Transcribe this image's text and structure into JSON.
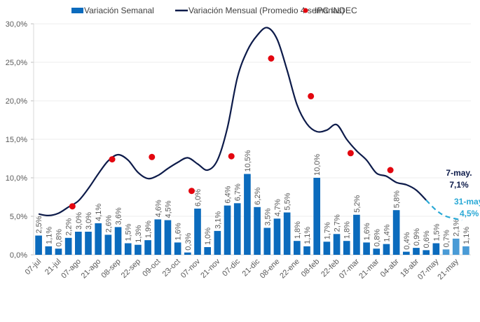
{
  "chart_data": {
    "type": "bar",
    "title": "",
    "xlabel": "",
    "ylabel": "",
    "ylim": [
      0,
      30
    ],
    "y_ticks": [
      "0,0%",
      "5,0%",
      "10,0%",
      "15,0%",
      "20,0%",
      "25,0%",
      "30,0%"
    ],
    "y_tick_values": [
      0,
      5,
      10,
      15,
      20,
      25,
      30
    ],
    "grid": true,
    "legend_position": "top-center",
    "legend": [
      {
        "name": "Variación Semanal",
        "kind": "bar",
        "color": "#0b6bbd"
      },
      {
        "name": "Variación Mensual (Promedio 4 semanas)",
        "kind": "line",
        "color": "#0d1b4a"
      },
      {
        "name": "IPC INDEC",
        "kind": "dot",
        "color": "#e3060f"
      }
    ],
    "x_tick_labels": [
      "07-jul",
      "21-jul",
      "07-ago",
      "21-ago",
      "08-sep",
      "22-sep",
      "09-oct",
      "23-oct",
      "07-nov",
      "21-nov",
      "07-dic",
      "21-dic",
      "08-ene",
      "22-ene",
      "08-feb",
      "22-feb",
      "07-mar",
      "21-mar",
      "04-abr",
      "18-abr",
      "07-may",
      "21-may"
    ],
    "series": [
      {
        "name": "Variación Semanal",
        "type": "bar",
        "color": "#0b6bbd",
        "projected_color": "#4a9bd6",
        "values": [
          2.5,
          1.1,
          0.8,
          2.2,
          3.0,
          3.0,
          4.1,
          2.6,
          3.6,
          1.5,
          1.3,
          1.9,
          4.6,
          4.5,
          1.6,
          0.3,
          6.0,
          1.0,
          3.1,
          6.4,
          6.7,
          10.5,
          6.2,
          3.5,
          4.7,
          5.5,
          1.8,
          1.1,
          10.0,
          1.7,
          2.7,
          1.8,
          5.2,
          1.6,
          0.8,
          1.4,
          5.8,
          0.4,
          0.9,
          0.6,
          1.5,
          0.7,
          2.1,
          1.1
        ],
        "labels": [
          "2,5%",
          "1,1%",
          "0,8%",
          "2,2%",
          "3,0%",
          "3,0%",
          "4,1%",
          "2,6%",
          "3,6%",
          "1,5%",
          "1,3%",
          "1,9%",
          "4,6%",
          "4,5%",
          "1,6%",
          "0,3%",
          "6,0%",
          "1,0%",
          "3,1%",
          "6,4%",
          "6,7%",
          "10,5%",
          "6,2%",
          "3,5%",
          "4,7%",
          "5,5%",
          "1,8%",
          "1,1%",
          "10,0%",
          "1,7%",
          "2,7%",
          "1,8%",
          "5,2%",
          "1,6%",
          "0,8%",
          "1,4%",
          "5,8%",
          "0,4%",
          "0,9%",
          "0,6%",
          "1,5%",
          "0,7%",
          "2,1%",
          "1,1%"
        ],
        "projected_from_index": 41
      },
      {
        "name": "Variación Mensual (Promedio 4 semanas)",
        "type": "line",
        "color": "#0d1b4a",
        "projected_color": "#2aa9d6",
        "points": [
          [
            0,
            5.3
          ],
          [
            1,
            5.1
          ],
          [
            2,
            5.4
          ],
          [
            3,
            6.2
          ],
          [
            4,
            7.0
          ],
          [
            5,
            8.6
          ],
          [
            6,
            10.5
          ],
          [
            7,
            12.2
          ],
          [
            8,
            13.0
          ],
          [
            9,
            12.3
          ],
          [
            10,
            10.7
          ],
          [
            11,
            9.9
          ],
          [
            12,
            10.3
          ],
          [
            13,
            11.2
          ],
          [
            14,
            12.0
          ],
          [
            15,
            12.6
          ],
          [
            16,
            11.8
          ],
          [
            17,
            11.0
          ],
          [
            18,
            12.3
          ],
          [
            19,
            16.5
          ],
          [
            20,
            23.0
          ],
          [
            21,
            26.5
          ],
          [
            22,
            28.5
          ],
          [
            23,
            29.5
          ],
          [
            24,
            28.0
          ],
          [
            25,
            24.0
          ],
          [
            26,
            19.5
          ],
          [
            27,
            17.0
          ],
          [
            28,
            16.0
          ],
          [
            29,
            16.2
          ],
          [
            30,
            16.9
          ],
          [
            31,
            15.0
          ],
          [
            32,
            13.5
          ],
          [
            33,
            12.3
          ],
          [
            34,
            10.6
          ],
          [
            35,
            10.2
          ],
          [
            36,
            9.4
          ],
          [
            37,
            9.1
          ],
          [
            38,
            8.4
          ],
          [
            39,
            7.1
          ]
        ],
        "projected_points": [
          [
            39,
            7.1
          ],
          [
            40,
            5.8
          ],
          [
            41,
            5.0
          ],
          [
            42.6,
            4.5
          ]
        ]
      },
      {
        "name": "IPC INDEC",
        "type": "scatter",
        "color": "#e3060f",
        "points": [
          [
            3.4,
            6.3
          ],
          [
            7.4,
            12.4
          ],
          [
            11.4,
            12.7
          ],
          [
            15.4,
            8.3
          ],
          [
            19.4,
            12.8
          ],
          [
            23.4,
            25.5
          ],
          [
            27.4,
            20.6
          ],
          [
            31.4,
            13.2
          ],
          [
            35.4,
            11.0
          ]
        ]
      }
    ],
    "annotations": [
      {
        "text_line1": "7-may.",
        "text_line2": "7,1%",
        "style": "dark"
      },
      {
        "text_line1": "31-may",
        "text_line2": "4,5%",
        "style": "light"
      }
    ]
  }
}
